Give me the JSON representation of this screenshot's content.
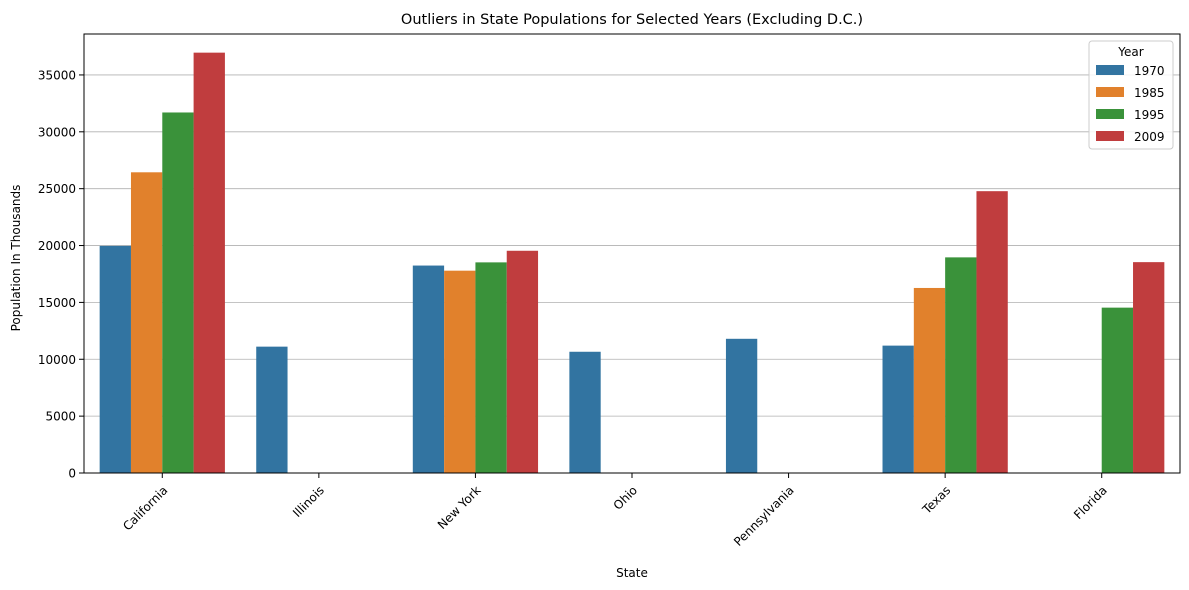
{
  "chart_data": {
    "type": "bar",
    "title": "Outliers in State Populations for Selected Years (Excluding D.C.)",
    "xlabel": "State",
    "ylabel": "Population In Thousands",
    "categories": [
      "California",
      "Illinois",
      "New York",
      "Ohio",
      "Pennsylvania",
      "Texas",
      "Florida"
    ],
    "ylim": [
      0,
      38600
    ],
    "yticks": [
      0,
      5000,
      10000,
      15000,
      20000,
      25000,
      30000,
      35000
    ],
    "grid": "horizontal",
    "legend": {
      "title": "Year",
      "placement": "top-right"
    },
    "series": [
      {
        "name": "1970",
        "color": "#3274a1",
        "values": [
          19970,
          11110,
          18240,
          10660,
          11800,
          11200,
          null
        ]
      },
      {
        "name": "1985",
        "color": "#e1812c",
        "values": [
          26440,
          null,
          17790,
          null,
          null,
          16270,
          null
        ]
      },
      {
        "name": "1995",
        "color": "#3a923a",
        "values": [
          31700,
          null,
          18520,
          null,
          null,
          18960,
          14540
        ]
      },
      {
        "name": "2009",
        "color": "#c03d3e",
        "values": [
          36960,
          null,
          19540,
          null,
          null,
          24780,
          18540
        ]
      }
    ]
  }
}
